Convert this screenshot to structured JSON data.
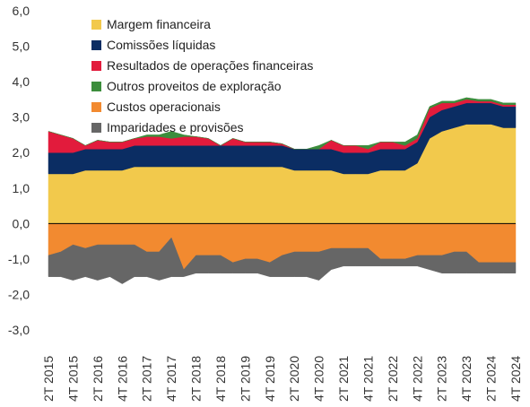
{
  "chart_data": {
    "type": "area",
    "stacked": "positive-and-negative",
    "title": "",
    "xlabel": "",
    "ylabel": "",
    "ylim": [
      -3.0,
      6.0
    ],
    "yticks": [
      "6,0",
      "5,0",
      "4,0",
      "3,0",
      "2,0",
      "1,0",
      "0,0",
      "-1,0",
      "-2,0",
      "-3,0"
    ],
    "grid": false,
    "legend": "top-left",
    "x": [
      "2T 2015",
      "3T 2015",
      "4T 2015",
      "1T 2016",
      "2T 2016",
      "3T 2016",
      "4T 2016",
      "1T 2017",
      "2T 2017",
      "3T 2017",
      "4T 2017",
      "1T 2018",
      "2T 2018",
      "3T 2018",
      "4T 2018",
      "1T 2019",
      "2T 2019",
      "3T 2019",
      "4T 2019",
      "1T 2020",
      "2T 2020",
      "3T 2020",
      "4T 2020",
      "1T 2021",
      "2T 2021",
      "3T 2021",
      "4T 2021",
      "1T 2022",
      "2T 2022",
      "3T 2022",
      "4T 2022",
      "1T 2023",
      "2T 2023",
      "3T 2023",
      "4T 2023",
      "1T 2024",
      "2T 2024",
      "3T 2024",
      "4T 2024"
    ],
    "xtick_labels": [
      "2T 2015",
      "4T 2015",
      "2T 2016",
      "4T 2016",
      "2T 2017",
      "4T 2017",
      "2T 2018",
      "4T 2018",
      "2T 2019",
      "4T 2019",
      "2T 2020",
      "4T 2020",
      "2T 2021",
      "4T 2021",
      "2T 2022",
      "4T 2022",
      "2T 2023",
      "4T 2023",
      "2T 2024",
      "4T 2024"
    ],
    "series": [
      {
        "name": "Margem financeira",
        "color": "#F2C94C",
        "values": [
          1.4,
          1.4,
          1.4,
          1.5,
          1.5,
          1.5,
          1.5,
          1.6,
          1.6,
          1.6,
          1.6,
          1.6,
          1.6,
          1.6,
          1.6,
          1.6,
          1.6,
          1.6,
          1.6,
          1.6,
          1.5,
          1.5,
          1.5,
          1.5,
          1.4,
          1.4,
          1.4,
          1.5,
          1.5,
          1.5,
          1.7,
          2.4,
          2.6,
          2.7,
          2.8,
          2.8,
          2.8,
          2.7,
          2.7
        ]
      },
      {
        "name": "Comissões líquidas",
        "color": "#0B2D63",
        "values": [
          0.6,
          0.6,
          0.6,
          0.6,
          0.6,
          0.6,
          0.6,
          0.6,
          0.6,
          0.6,
          0.6,
          0.6,
          0.6,
          0.6,
          0.6,
          0.6,
          0.6,
          0.6,
          0.6,
          0.6,
          0.6,
          0.6,
          0.6,
          0.6,
          0.6,
          0.6,
          0.6,
          0.6,
          0.6,
          0.6,
          0.6,
          0.6,
          0.6,
          0.6,
          0.6,
          0.6,
          0.6,
          0.6,
          0.6
        ]
      },
      {
        "name": "Resultados de operações financeiras",
        "color": "#E21B3C",
        "values": [
          0.6,
          0.5,
          0.4,
          0.1,
          0.25,
          0.2,
          0.2,
          0.2,
          0.25,
          0.25,
          0.2,
          0.25,
          0.25,
          0.2,
          0.0,
          0.2,
          0.1,
          0.1,
          0.1,
          0.05,
          0.0,
          0.0,
          0.0,
          0.25,
          0.2,
          0.2,
          0.1,
          0.2,
          0.2,
          0.1,
          0.1,
          0.25,
          0.2,
          0.1,
          0.1,
          0.05,
          0.05,
          0.05,
          0.05
        ]
      },
      {
        "name": "Outros proveitos de exploração",
        "color": "#3C8D3C",
        "values": [
          0.0,
          0.0,
          0.0,
          0.0,
          0.0,
          0.0,
          0.0,
          0.0,
          0.05,
          0.05,
          0.2,
          0.05,
          0.0,
          0.0,
          0.0,
          0.0,
          0.0,
          0.0,
          0.0,
          0.0,
          0.0,
          0.0,
          0.1,
          0.0,
          0.0,
          0.0,
          0.1,
          0.0,
          0.0,
          0.1,
          0.1,
          0.05,
          0.05,
          0.05,
          0.05,
          0.05,
          0.05,
          0.05,
          0.05
        ]
      },
      {
        "name": "Custos operacionais",
        "color": "#F28A30",
        "values": [
          -0.9,
          -0.8,
          -0.6,
          -0.7,
          -0.6,
          -0.6,
          -0.6,
          -0.6,
          -0.8,
          -0.8,
          -0.4,
          -1.3,
          -0.9,
          -0.9,
          -0.9,
          -1.1,
          -1.0,
          -1.0,
          -1.1,
          -0.9,
          -0.8,
          -0.8,
          -0.8,
          -0.7,
          -0.7,
          -0.7,
          -0.7,
          -1.0,
          -1.0,
          -1.0,
          -0.9,
          -0.9,
          -0.9,
          -0.8,
          -0.8,
          -1.1,
          -1.1,
          -1.1,
          -1.1
        ]
      },
      {
        "name": "Imparidades e provisões",
        "color": "#666666",
        "values": [
          -0.6,
          -0.7,
          -1.0,
          -0.8,
          -1.0,
          -0.9,
          -1.1,
          -0.9,
          -0.7,
          -0.8,
          -1.1,
          -0.2,
          -0.5,
          -0.5,
          -0.5,
          -0.3,
          -0.4,
          -0.4,
          -0.4,
          -0.6,
          -0.7,
          -0.7,
          -0.8,
          -0.6,
          -0.5,
          -0.5,
          -0.5,
          -0.2,
          -0.2,
          -0.2,
          -0.3,
          -0.4,
          -0.5,
          -0.6,
          -0.6,
          -0.3,
          -0.3,
          -0.3,
          -0.3
        ]
      }
    ]
  }
}
